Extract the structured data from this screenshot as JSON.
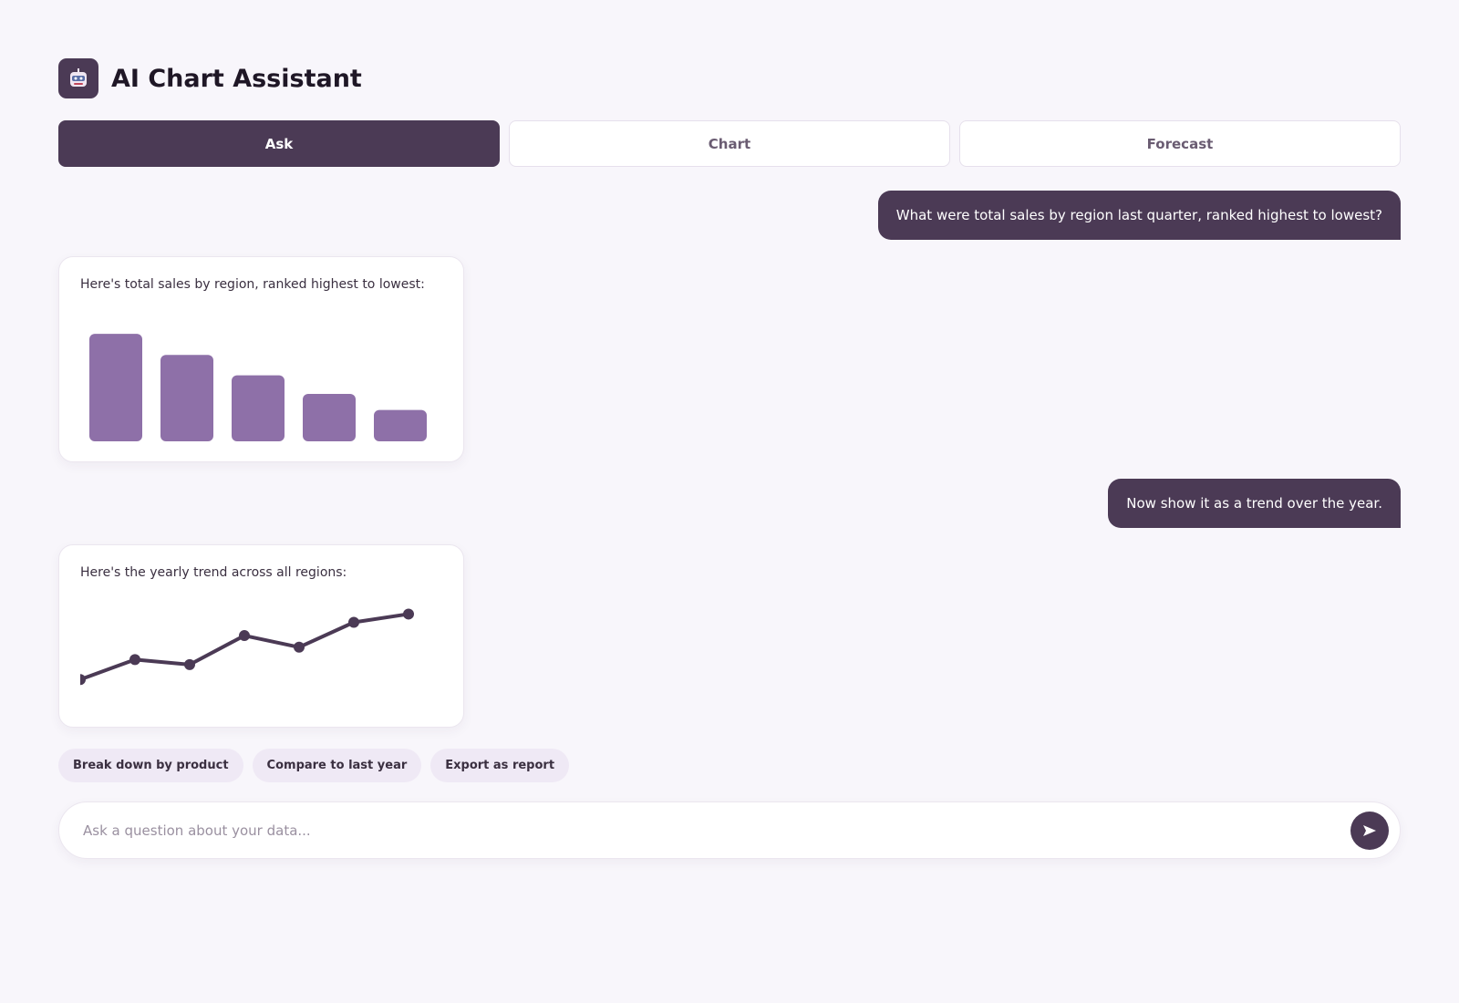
{
  "header": {
    "title": "AI Chart Assistant"
  },
  "tabs": [
    {
      "label": "Ask",
      "active": true
    },
    {
      "label": "Chart",
      "active": false
    },
    {
      "label": "Forecast",
      "active": false
    }
  ],
  "messages": [
    {
      "role": "user",
      "text": "What were total sales by region last quarter, ranked highest to lowest?"
    },
    {
      "role": "assistant",
      "text": "Here's total sales by region, ranked highest to lowest:",
      "chart": {
        "type": "bar",
        "values": [
          127,
          102,
          78,
          56,
          37
        ],
        "ylim": [
          0,
          140
        ],
        "color": "#8e70a8"
      }
    },
    {
      "role": "user",
      "text": "Now show it as a trend over the year."
    },
    {
      "role": "assistant",
      "text": "Here's the yearly trend across all regions:",
      "chart": {
        "type": "line",
        "values": [
          24,
          48,
          42,
          77,
          63,
          93,
          103
        ],
        "ylim": [
          0,
          120
        ],
        "color": "#4b3a55"
      }
    }
  ],
  "suggestions": [
    "Break down by product",
    "Compare to last year",
    "Export as report"
  ],
  "input": {
    "placeholder": "Ask a question about your data..."
  }
}
